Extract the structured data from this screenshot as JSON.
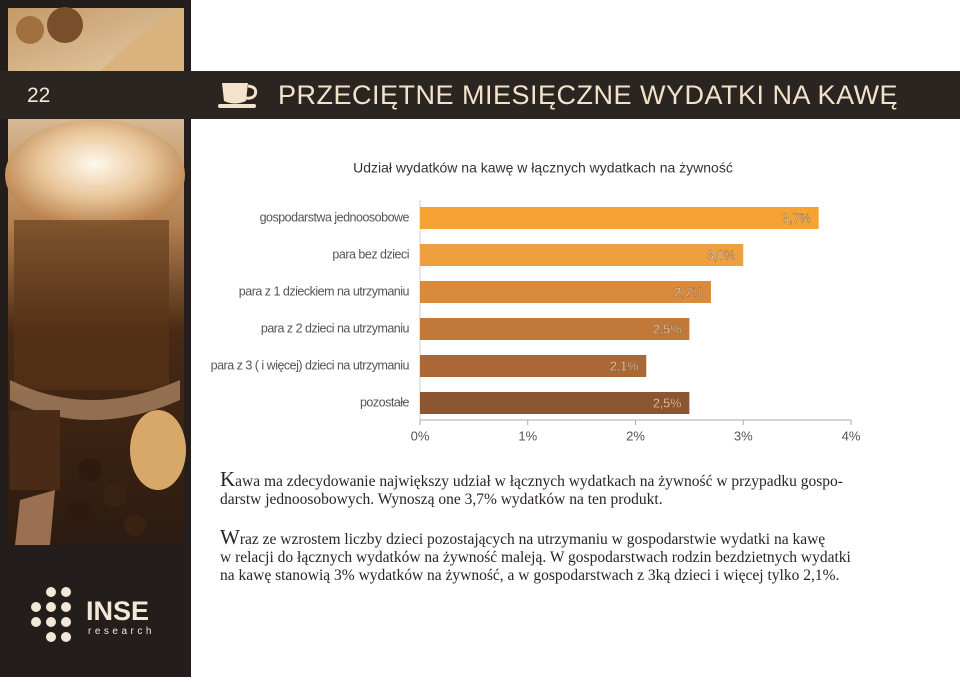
{
  "page_number": "22",
  "header": {
    "title": "PRZECIĘTNE MIESIĘCZNE WYDATKI NA KAWĘ"
  },
  "chart_data": {
    "type": "bar",
    "orientation": "horizontal",
    "title": "Udział wydatków na kawę w łącznych wydatkach na żywność",
    "categories": [
      "gospodarstwa jednoosobowe",
      "para bez dzieci",
      "para z 1 dzieckiem  na utrzymaniu",
      "para z 2 dzieci  na utrzymaniu",
      "para z 3 ( i więcej) dzieci  na utrzymaniu",
      "pozostałe"
    ],
    "values": [
      3.7,
      3.0,
      2.7,
      2.5,
      2.1,
      2.5
    ],
    "value_labels": [
      "3,7%",
      "3,0%",
      "2,7%",
      "2,5%",
      "2,1%",
      "2,5%"
    ],
    "colors": [
      "#f5a332",
      "#eea03e",
      "#d98a3a",
      "#c27838",
      "#a96836",
      "#8c5632"
    ],
    "xlim": [
      0,
      4
    ],
    "xticks": [
      {
        "value": 0,
        "label": "0%"
      },
      {
        "value": 1,
        "label": "1%"
      },
      {
        "value": 2,
        "label": "2%"
      },
      {
        "value": 3,
        "label": "3%"
      },
      {
        "value": 4,
        "label": "4%"
      }
    ]
  },
  "paragraphs": [
    [
      "Kawa ma zdecydowanie największy udział w łącznych wydatkach na żywność w przypadku gospo-",
      "darstw jednoosobowych. Wynoszą one 3,7% wydatków na ten produkt."
    ],
    [
      "Wraz ze wzrostem liczby dzieci pozostających na utrzymaniu w gospodarstwie wydatki na kawę",
      "w relacji do łącznych wydatków na żywność maleją. W gospodarstwach rodzin bezdzietnych wydatki",
      "na kawę stanowią 3% wydatków na żywność, a w gospodarstwach z 3ką dzieci i więcej tylko 2,1%."
    ]
  ],
  "logo": {
    "name": "INSE",
    "tagline": "research"
  }
}
